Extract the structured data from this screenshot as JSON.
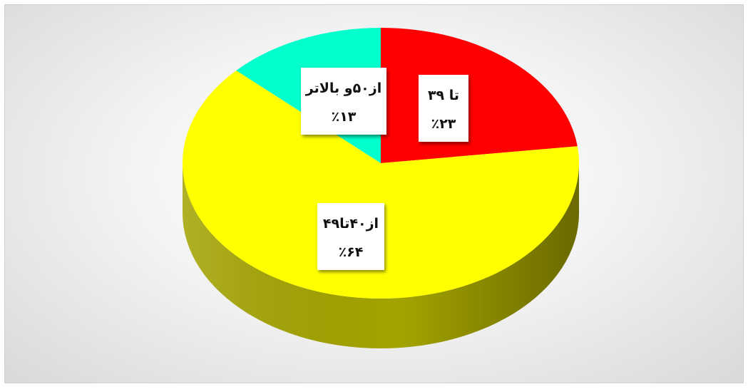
{
  "chart_data": {
    "type": "pie",
    "style": "3d",
    "slices": [
      {
        "label": "تا ۳۹",
        "value": 23,
        "value_label": "٪۲۳",
        "color": "#ff0000",
        "side_color": "#b30000"
      },
      {
        "label": "از۴۰تا۴۹",
        "value": 64,
        "value_label": "٪۶۴",
        "color": "#ffff00",
        "side_color": "#a3a300"
      },
      {
        "label": "از۵۰و بالاتر",
        "value": 13,
        "value_label": "٪۱۳",
        "color": "#00ffcc",
        "side_color": "#00a385"
      }
    ],
    "legend": "none"
  }
}
